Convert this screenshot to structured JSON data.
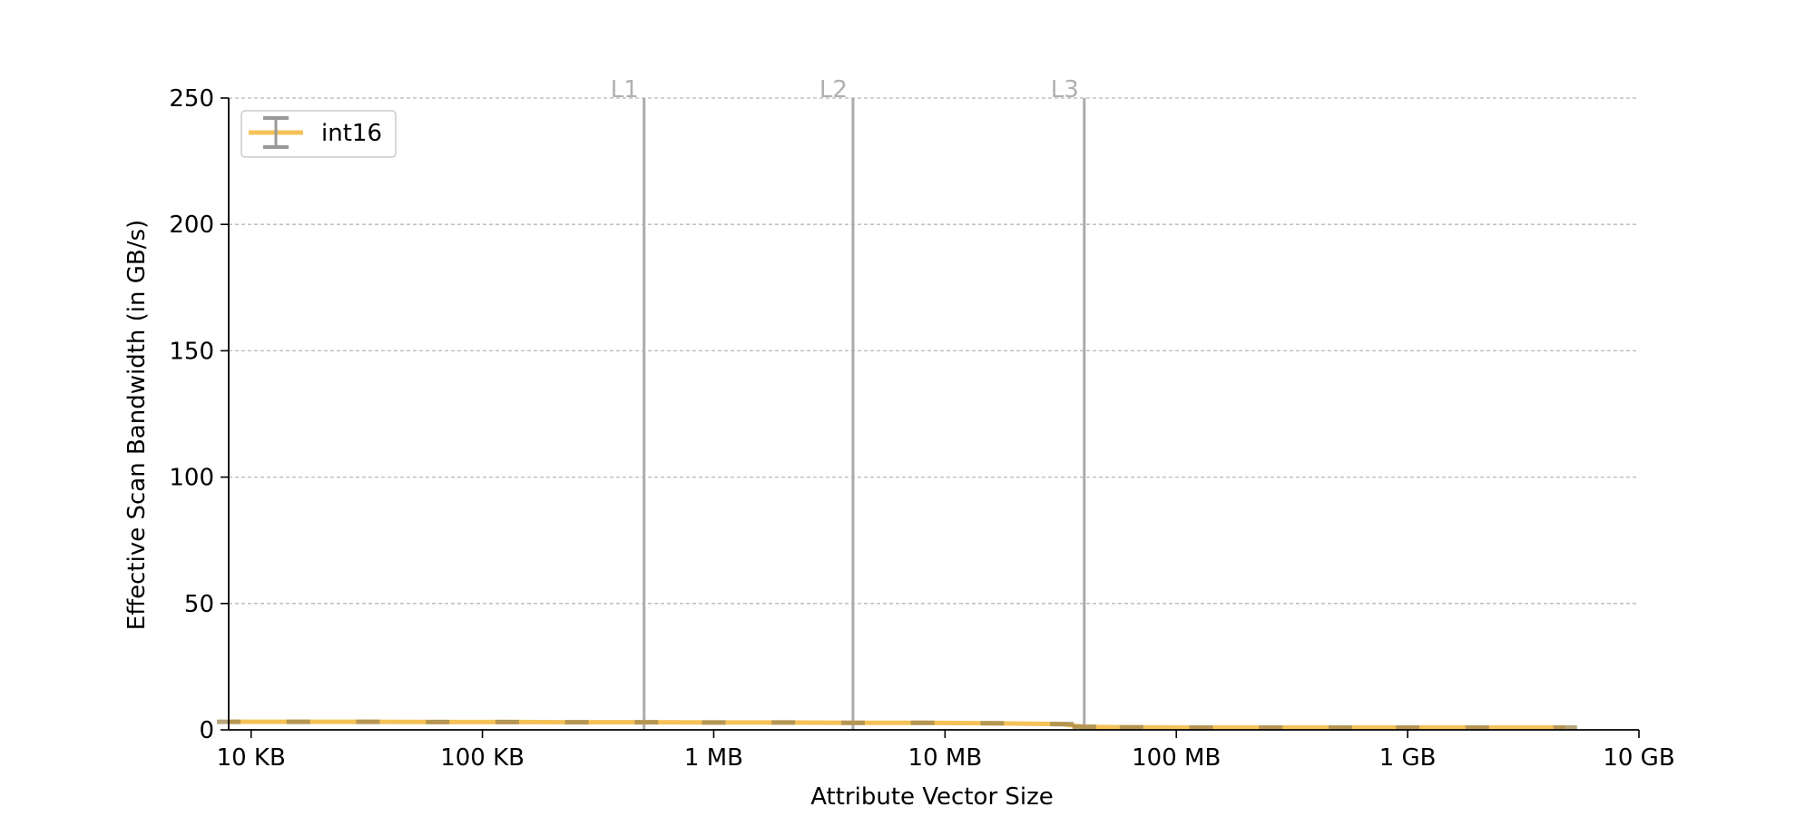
{
  "chart_data": {
    "type": "line",
    "xlabel": "Attribute Vector Size",
    "ylabel": "Effective Scan Bandwidth (in GB/s)",
    "x_scale": "log",
    "x_ticks": [
      {
        "value_bytes": 10000,
        "label": "10 KB"
      },
      {
        "value_bytes": 100000,
        "label": "100 KB"
      },
      {
        "value_bytes": 1000000,
        "label": "1 MB"
      },
      {
        "value_bytes": 10000000,
        "label": "10 MB"
      },
      {
        "value_bytes": 100000000,
        "label": "100 MB"
      },
      {
        "value_bytes": 1000000000,
        "label": "1 GB"
      },
      {
        "value_bytes": 10000000000,
        "label": "10 GB"
      }
    ],
    "y_ticks": [
      0,
      50,
      100,
      150,
      200,
      250
    ],
    "xlim_bytes": [
      8000,
      10000000000
    ],
    "ylim": [
      0,
      250
    ],
    "grid": "horizontal dashed",
    "legend_position": "top-left",
    "cache_lines": [
      {
        "label": "L1",
        "value_bytes": 500000
      },
      {
        "label": "L2",
        "value_bytes": 4000000
      },
      {
        "label": "L3",
        "value_bytes": 40000000
      }
    ],
    "series": [
      {
        "name": "int16",
        "color": "#f5c25a",
        "error_color": "#a08850",
        "x_bytes": [
          8000,
          16000,
          32000,
          64000,
          128000,
          256000,
          512000,
          1000000,
          2000000,
          4000000,
          8000000,
          16000000,
          32000000,
          40000000,
          64000000,
          128000000,
          256000000,
          512000000,
          1000000000,
          2000000000,
          4800000000
        ],
        "y": [
          3.2,
          3.2,
          3.2,
          3.1,
          3.1,
          3.0,
          3.0,
          2.9,
          2.9,
          2.8,
          2.8,
          2.6,
          2.3,
          1.2,
          1.0,
          0.9,
          0.9,
          0.9,
          0.9,
          0.9,
          0.9
        ]
      }
    ]
  }
}
